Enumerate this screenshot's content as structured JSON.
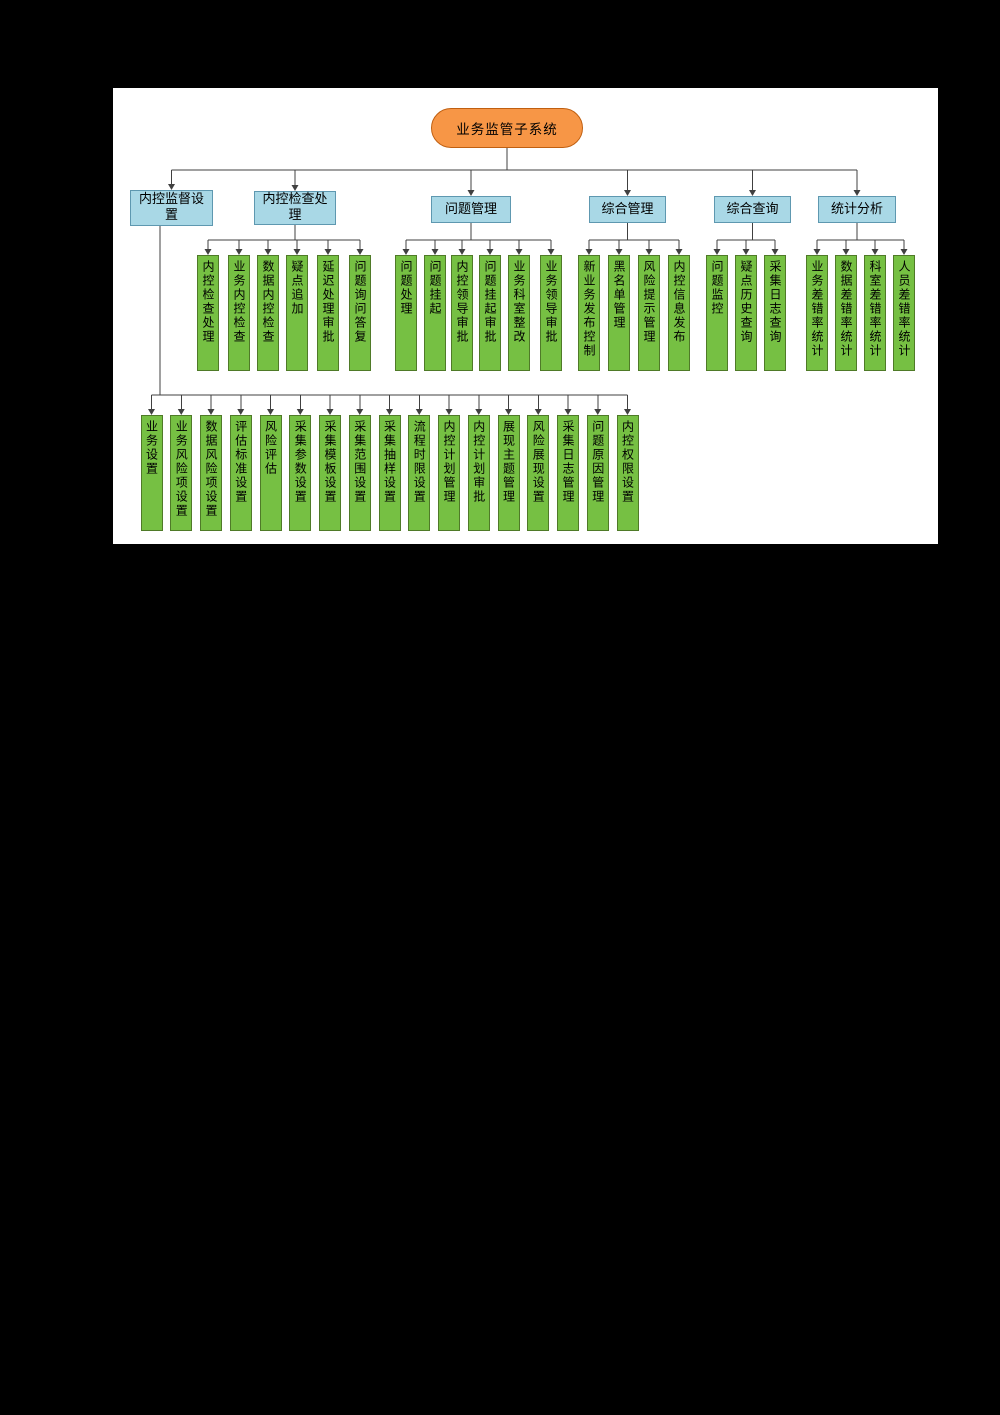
{
  "diagram": {
    "root": {
      "label": "业务监管子系统"
    },
    "branches": [
      {
        "label": "内控监督设置",
        "children": [
          "业务设置",
          "业务风险项设置",
          "数据风险项设置",
          "评估标准设置",
          "风险评估",
          "采集参数设置",
          "采集模板设置",
          "采集范围设置",
          "采集抽样设置",
          "流程时限设置",
          "内控计划管理",
          "内控计划审批",
          "展现主题管理",
          "风险展现设置",
          "采集日志管理",
          "问题原因管理",
          "内控权限设置"
        ]
      },
      {
        "label": "内控检查处理",
        "children": [
          "内控检查处理",
          "业务内控检查",
          "数据内控检查",
          "疑点追加",
          "延迟处理审批",
          "问题询问答复"
        ]
      },
      {
        "label": "问题管理",
        "children": [
          "问题处理",
          "问题挂起",
          "内控领导审批",
          "问题挂起审批",
          "业务科室整改",
          "业务领导审批"
        ]
      },
      {
        "label": "综合管理",
        "children": [
          "新业务发布控制",
          "黑名单管理",
          "风险提示管理",
          "内控信息发布"
        ]
      },
      {
        "label": "综合查询",
        "children": [
          "问题监控",
          "疑点历史查询",
          "采集日志查询"
        ]
      },
      {
        "label": "统计分析",
        "children": [
          "业务差错率统计",
          "数据差错率统计",
          "科室差错率统计",
          "人员差错率统计"
        ]
      }
    ]
  },
  "colors": {
    "page_background": "#000000",
    "canvas_background": "#ffffff",
    "root_fill": "#F79646",
    "root_border": "#C05F10",
    "branch_fill": "#A9D8E6",
    "branch_border": "#5E98B0",
    "leaf_fill": "#76C043",
    "leaf_border": "#4F7A28",
    "connector": "#404040"
  }
}
